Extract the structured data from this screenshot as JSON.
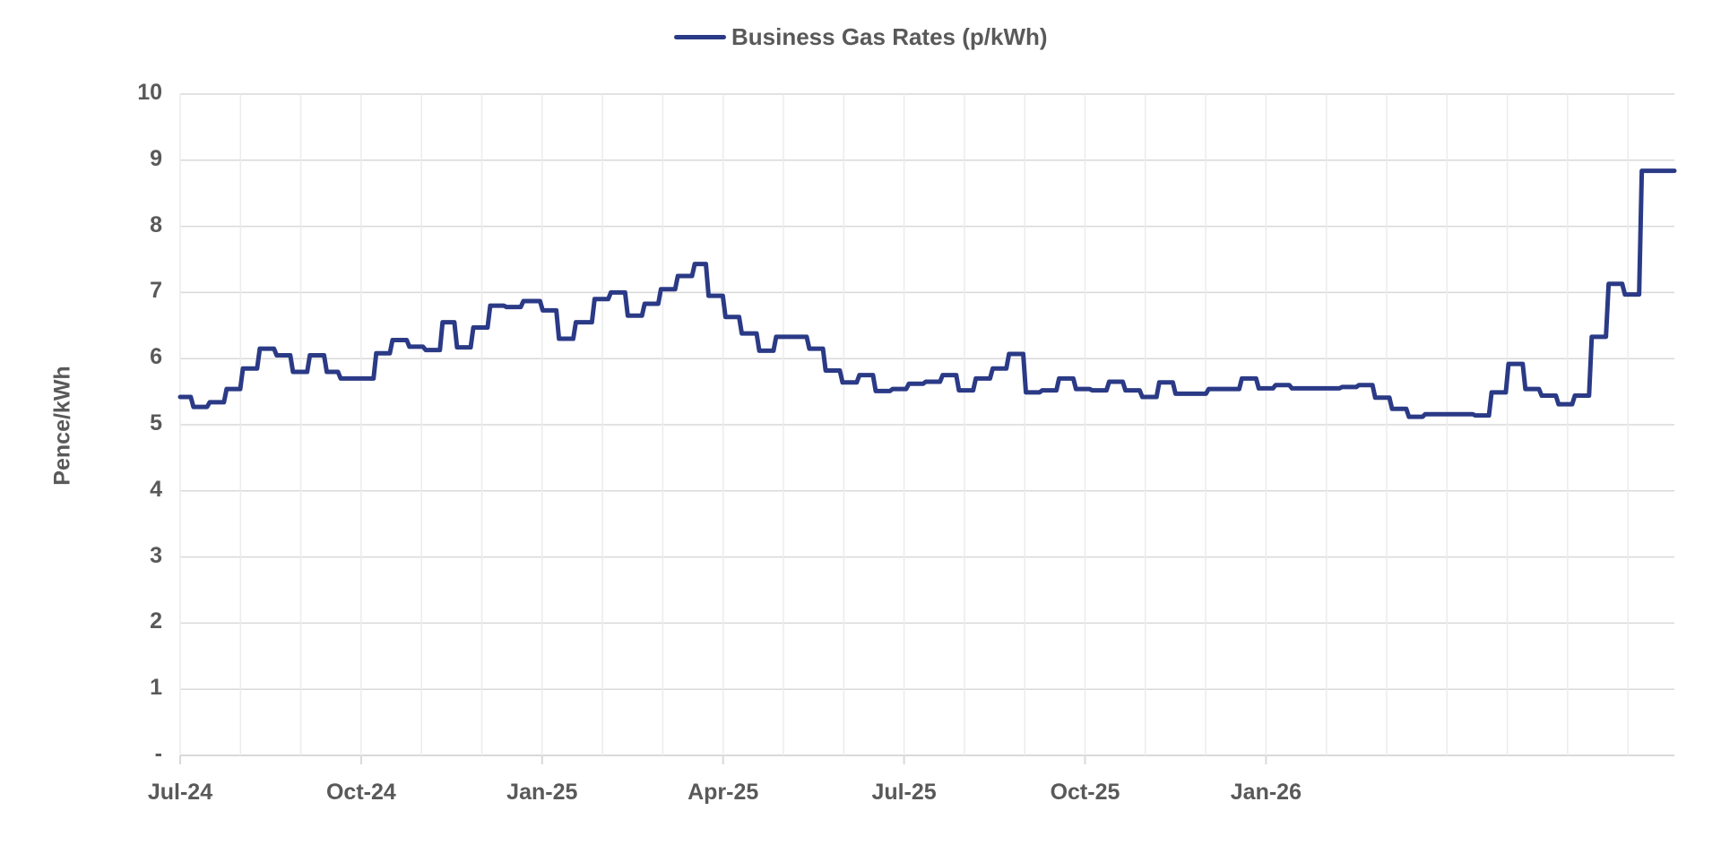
{
  "chart_data": {
    "type": "line",
    "title": "",
    "legend": [
      "Business Gas Rates (p/kWh)"
    ],
    "legend_position": "top",
    "xlabel": "",
    "ylabel": "Pence/kWh",
    "ylim": [
      0,
      10
    ],
    "yticks": [
      "-",
      "1",
      "2",
      "3",
      "4",
      "5",
      "6",
      "7",
      "8",
      "9",
      "10"
    ],
    "xticks": [
      "Jul-24",
      "Oct-24",
      "Jan-25",
      "Apr-25",
      "Jul-25",
      "Oct-25",
      "Jan-26"
    ],
    "grid": true,
    "line_color": "#2b3a86",
    "step": true,
    "series": [
      {
        "name": "Business Gas Rates (p/kWh)",
        "steps": [
          [
            0.0,
            5.42
          ],
          [
            0.22,
            5.27
          ],
          [
            0.49,
            5.34
          ],
          [
            0.77,
            5.54
          ],
          [
            1.04,
            5.85
          ],
          [
            1.32,
            6.15
          ],
          [
            1.6,
            6.05
          ],
          [
            1.87,
            5.8
          ],
          [
            2.15,
            6.05
          ],
          [
            2.43,
            5.8
          ],
          [
            2.66,
            5.7
          ],
          [
            3.25,
            6.08
          ],
          [
            3.52,
            6.28
          ],
          [
            3.8,
            6.18
          ],
          [
            4.07,
            6.13
          ],
          [
            4.35,
            6.55
          ],
          [
            4.59,
            6.17
          ],
          [
            4.86,
            6.47
          ],
          [
            5.14,
            6.8
          ],
          [
            5.41,
            6.78
          ],
          [
            5.69,
            6.87
          ],
          [
            6.01,
            6.73
          ],
          [
            6.28,
            6.3
          ],
          [
            6.56,
            6.55
          ],
          [
            6.87,
            6.9
          ],
          [
            7.14,
            7.0
          ],
          [
            7.42,
            6.65
          ],
          [
            7.7,
            6.83
          ],
          [
            7.97,
            7.05
          ],
          [
            8.25,
            7.25
          ],
          [
            8.53,
            7.43
          ],
          [
            8.76,
            6.95
          ],
          [
            9.04,
            6.63
          ],
          [
            9.31,
            6.38
          ],
          [
            9.6,
            6.12
          ],
          [
            9.88,
            6.33
          ],
          [
            10.43,
            6.15
          ],
          [
            10.7,
            5.82
          ],
          [
            10.98,
            5.64
          ],
          [
            11.26,
            5.75
          ],
          [
            11.53,
            5.51
          ],
          [
            11.81,
            5.54
          ],
          [
            12.08,
            5.62
          ],
          [
            12.36,
            5.65
          ],
          [
            12.64,
            5.75
          ],
          [
            12.91,
            5.52
          ],
          [
            13.19,
            5.7
          ],
          [
            13.47,
            5.85
          ],
          [
            13.74,
            6.07
          ],
          [
            14.02,
            5.49
          ],
          [
            14.29,
            5.52
          ],
          [
            14.57,
            5.7
          ],
          [
            14.85,
            5.54
          ],
          [
            15.12,
            5.52
          ],
          [
            15.4,
            5.65
          ],
          [
            15.67,
            5.52
          ],
          [
            15.95,
            5.42
          ],
          [
            16.23,
            5.64
          ],
          [
            16.5,
            5.47
          ],
          [
            17.05,
            5.54
          ],
          [
            17.6,
            5.7
          ],
          [
            17.88,
            5.55
          ],
          [
            18.16,
            5.6
          ],
          [
            18.43,
            5.55
          ],
          [
            19.26,
            5.57
          ],
          [
            19.54,
            5.6
          ],
          [
            19.81,
            5.41
          ],
          [
            20.09,
            5.24
          ],
          [
            20.37,
            5.12
          ],
          [
            20.64,
            5.16
          ],
          [
            21.19,
            5.16
          ],
          [
            21.47,
            5.14
          ],
          [
            21.74,
            5.49
          ],
          [
            22.02,
            5.92
          ],
          [
            22.3,
            5.54
          ],
          [
            22.57,
            5.44
          ],
          [
            22.85,
            5.31
          ],
          [
            23.12,
            5.44
          ],
          [
            23.4,
            6.33
          ],
          [
            23.68,
            7.13
          ],
          [
            23.95,
            6.97
          ],
          [
            24.23,
            8.84
          ],
          [
            24.77,
            8.84
          ]
        ]
      }
    ],
    "x_unit": "months since Jul-24",
    "x_range": [
      0,
      24.77
    ]
  }
}
